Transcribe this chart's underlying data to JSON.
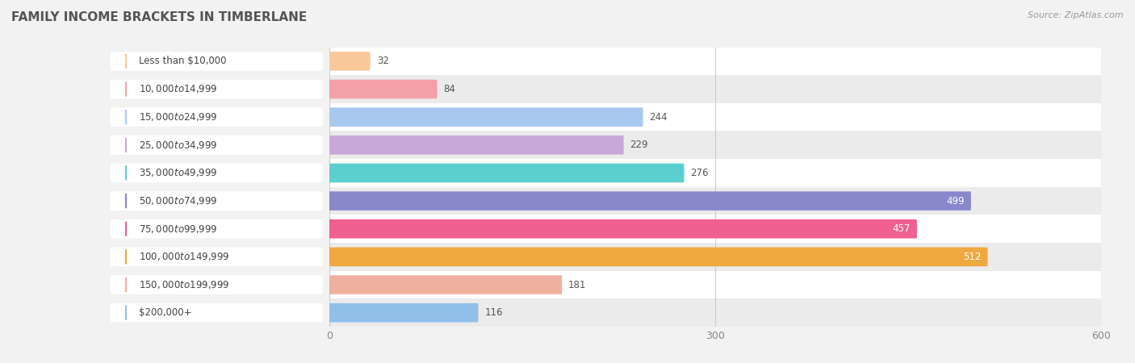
{
  "title": "FAMILY INCOME BRACKETS IN TIMBERLANE",
  "source": "Source: ZipAtlas.com",
  "categories": [
    "Less than $10,000",
    "$10,000 to $14,999",
    "$15,000 to $24,999",
    "$25,000 to $34,999",
    "$35,000 to $49,999",
    "$50,000 to $74,999",
    "$75,000 to $99,999",
    "$100,000 to $149,999",
    "$150,000 to $199,999",
    "$200,000+"
  ],
  "values": [
    32,
    84,
    244,
    229,
    276,
    499,
    457,
    512,
    181,
    116
  ],
  "colors": [
    "#F9C99A",
    "#F4A0A8",
    "#A8C8F0",
    "#C8A8D8",
    "#5BCFCF",
    "#8888CC",
    "#F06090",
    "#F0A840",
    "#F0B0A0",
    "#90C0E8"
  ],
  "xlim": [
    0,
    600
  ],
  "xticks": [
    0,
    300,
    600
  ],
  "bar_height": 0.68,
  "background_color": "#f2f2f2",
  "row_bg_colors": [
    "#ffffff",
    "#ebebeb"
  ],
  "title_fontsize": 11,
  "label_fontsize": 8.5,
  "value_fontsize": 8.5,
  "value_threshold": 350
}
